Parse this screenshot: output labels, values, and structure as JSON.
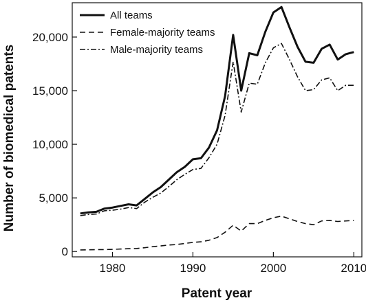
{
  "chart_data": {
    "type": "line",
    "xlabel": "Patent year",
    "ylabel": "Number of biomedical patents",
    "xlim": [
      1975,
      2011
    ],
    "ylim": [
      -500,
      23200
    ],
    "x_ticks": [
      1980,
      1990,
      2000,
      2010
    ],
    "x_tick_labels": [
      "1980",
      "1990",
      "2000",
      "2010"
    ],
    "y_ticks": [
      0,
      5000,
      10000,
      15000,
      20000
    ],
    "y_tick_labels": [
      "0",
      "5,000",
      "10,000",
      "15,000",
      "20,000"
    ],
    "grid": false,
    "legend": "top-left",
    "x": [
      1976,
      1977,
      1978,
      1979,
      1980,
      1981,
      1982,
      1983,
      1984,
      1985,
      1986,
      1987,
      1988,
      1989,
      1990,
      1991,
      1992,
      1993,
      1994,
      1995,
      1996,
      1997,
      1998,
      1999,
      2000,
      2001,
      2002,
      2003,
      2004,
      2005,
      2006,
      2007,
      2008,
      2009,
      2010
    ],
    "series": [
      {
        "name": "All teams",
        "style": "solid",
        "values": [
          3550,
          3650,
          3700,
          4000,
          4100,
          4250,
          4400,
          4300,
          4900,
          5500,
          6000,
          6700,
          7400,
          7900,
          8600,
          8700,
          9700,
          11300,
          14500,
          20200,
          15000,
          18500,
          18300,
          20500,
          22300,
          22800,
          20900,
          19100,
          17700,
          17600,
          18900,
          19300,
          17900,
          18400,
          18600
        ]
      },
      {
        "name": "Female-majority teams",
        "style": "dashed",
        "values": [
          150,
          160,
          170,
          180,
          200,
          230,
          260,
          280,
          350,
          450,
          520,
          600,
          650,
          750,
          850,
          900,
          1050,
          1300,
          1800,
          2450,
          1900,
          2600,
          2600,
          2900,
          3150,
          3300,
          3050,
          2800,
          2600,
          2500,
          2850,
          2900,
          2800,
          2850,
          2900
        ]
      },
      {
        "name": "Male-majority teams",
        "style": "dash-dot",
        "values": [
          3350,
          3450,
          3500,
          3800,
          3850,
          3950,
          4100,
          4000,
          4600,
          5050,
          5450,
          6050,
          6700,
          7200,
          7650,
          7750,
          8750,
          10000,
          12700,
          17700,
          13000,
          15700,
          15600,
          17600,
          19000,
          19400,
          17900,
          16300,
          15000,
          15100,
          16000,
          16200,
          15000,
          15500,
          15500
        ]
      }
    ]
  }
}
